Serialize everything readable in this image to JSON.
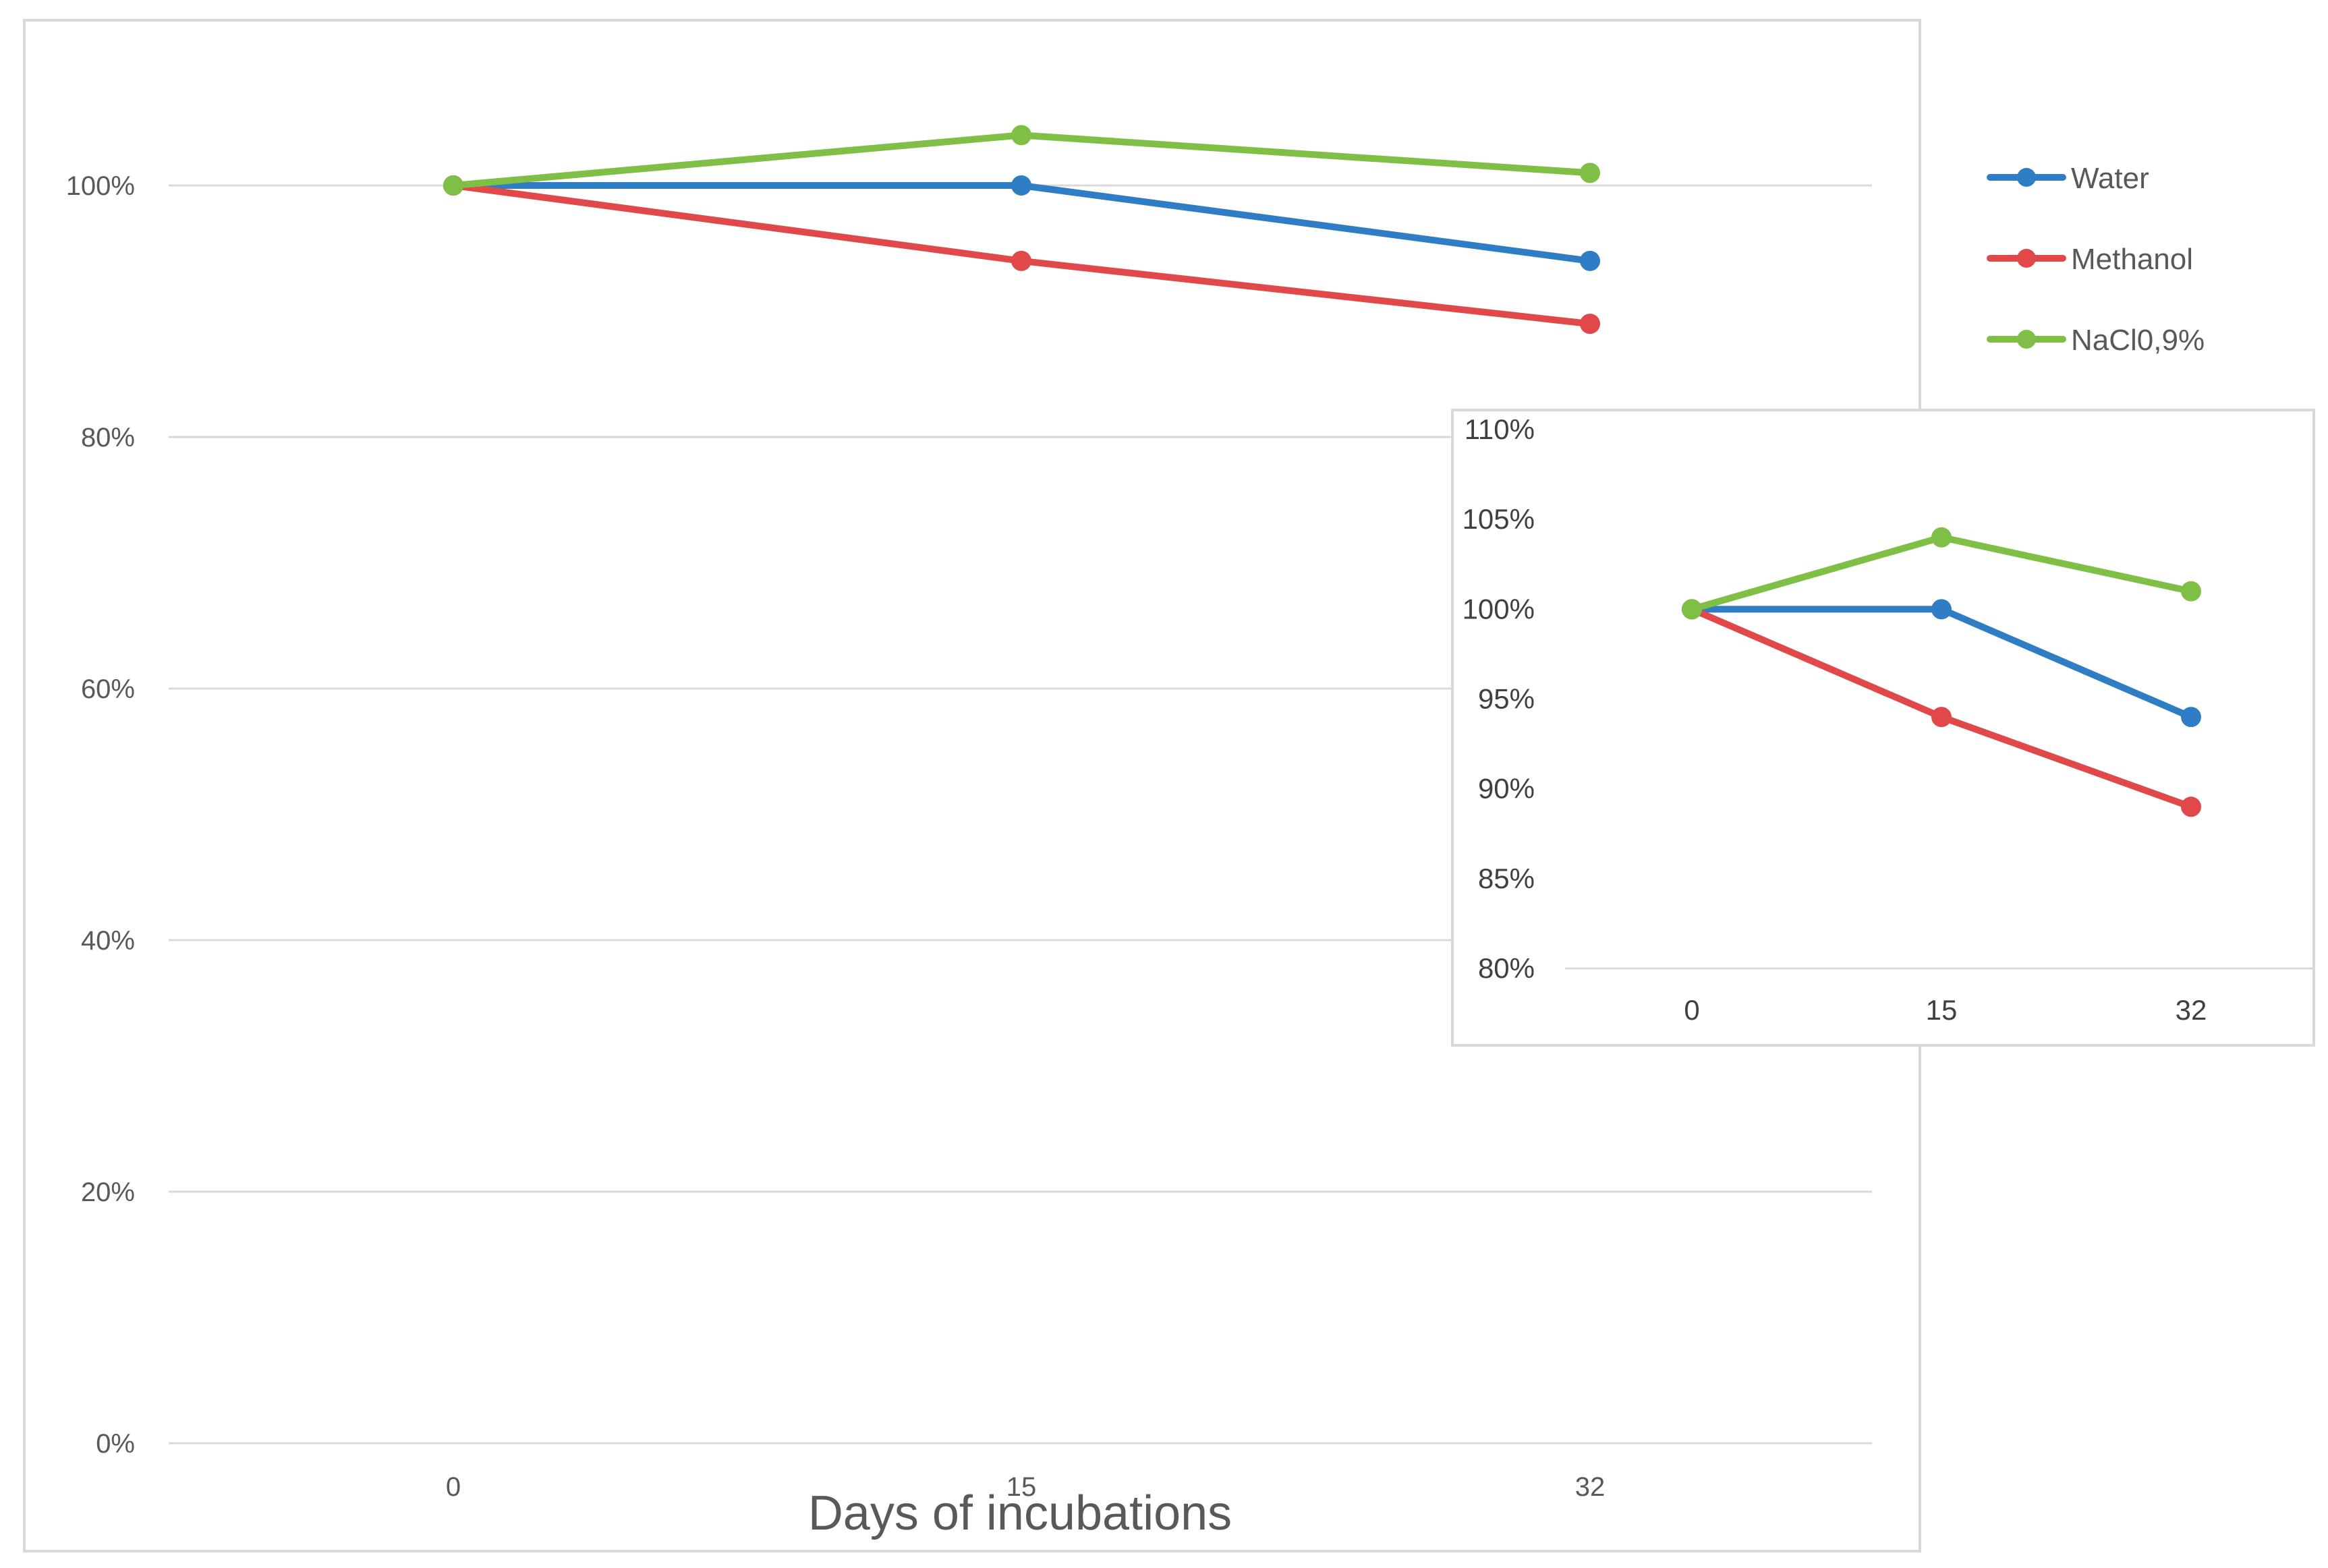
{
  "chart_data": [
    {
      "id": "main",
      "type": "line",
      "title": "",
      "xlabel": "Days of incubations",
      "ylabel": "",
      "categories": [
        "0",
        "15",
        "32"
      ],
      "ylim": [
        0,
        1.0
      ],
      "yticks": [
        0,
        0.2,
        0.4,
        0.6,
        0.8,
        1.0
      ],
      "ytick_labels": [
        "0%",
        "20%",
        "40%",
        "60%",
        "80%",
        "100%"
      ],
      "grid": true,
      "legend": "right",
      "series": [
        {
          "name": "Water",
          "color": "#2E7DC5",
          "values": [
            1.0,
            1.0,
            0.94
          ]
        },
        {
          "name": "Methanol",
          "color": "#E0484A",
          "values": [
            1.0,
            0.94,
            0.89
          ]
        },
        {
          "name": "NaCl0,9%",
          "color": "#7FBF45",
          "values": [
            1.0,
            1.04,
            1.01
          ]
        }
      ]
    },
    {
      "id": "inset",
      "type": "line",
      "title": "",
      "xlabel": "",
      "ylabel": "",
      "categories": [
        "0",
        "15",
        "32"
      ],
      "ylim": [
        0.8,
        1.1
      ],
      "yticks": [
        0.8,
        0.85,
        0.9,
        0.95,
        1.0,
        1.05,
        1.1
      ],
      "ytick_labels": [
        "80%",
        "85%",
        "90%",
        "95%",
        "100%",
        "105%",
        "110%"
      ],
      "grid": false,
      "series": [
        {
          "name": "Water",
          "color": "#2E7DC5",
          "values": [
            1.0,
            1.0,
            0.94
          ]
        },
        {
          "name": "Methanol",
          "color": "#E0484A",
          "values": [
            1.0,
            0.94,
            0.89
          ]
        },
        {
          "name": "NaCl0,9%",
          "color": "#7FBF45",
          "values": [
            1.0,
            1.04,
            1.01
          ]
        }
      ]
    }
  ],
  "legend_labels": [
    "Water",
    "Methanol",
    "NaCl0,9%"
  ]
}
